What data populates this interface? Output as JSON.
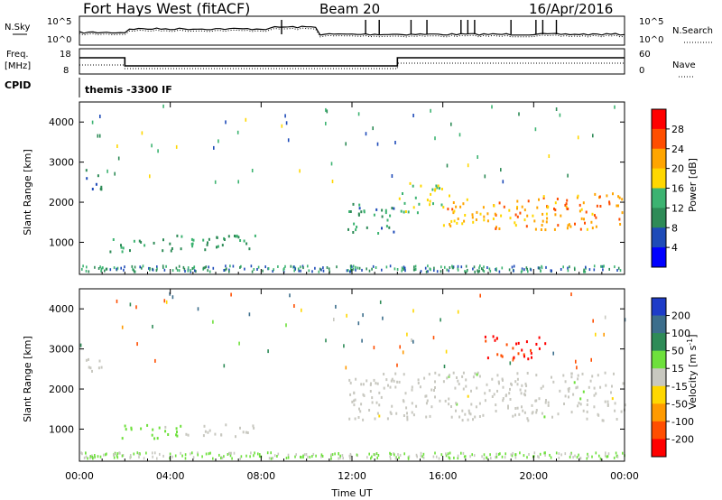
{
  "header": {
    "station": "Fort Hays West (fitACF)",
    "beam": "Beam 20",
    "date": "16/Apr/2016"
  },
  "aux_panels": {
    "nsky_label": "N.Sky",
    "nsky_ticks": [
      "10^5",
      "10^0"
    ],
    "nsearch_label": "N.Search",
    "freq_label_1": "Freq.",
    "freq_label_2": "[MHz]",
    "freq_ticks": [
      "18",
      "8"
    ],
    "nave_label": "Nave",
    "nave_ticks": [
      "60",
      "0"
    ],
    "cpid_label": "CPID",
    "cpid_value": "themis -3300 IF"
  },
  "chart_data": [
    {
      "type": "heatmap",
      "quantity": "Power",
      "xlabel": "Time UT",
      "ylabel": "Slant Range [km]",
      "xlim_hours": [
        0,
        24
      ],
      "ylim_km": [
        200,
        4500
      ],
      "y_ticks": [
        1000,
        2000,
        3000,
        4000
      ],
      "colorbar": {
        "label": "Power [dB]",
        "ticks": [
          "28",
          "24",
          "20",
          "16",
          "12",
          "8",
          "4"
        ],
        "colors": [
          "#ff0000",
          "#ff4e00",
          "#ffa500",
          "#ffd700",
          "#3cb371",
          "#2e8b57",
          "#1e4bb8",
          "#0000ff"
        ]
      },
      "echo_regions": [
        {
          "t0": 0.1,
          "t1": 1.0,
          "r0": 2300,
          "r1": 2800,
          "power_db": 10
        },
        {
          "t0": 1.3,
          "t1": 7.8,
          "r0": 750,
          "r1": 1150,
          "power_db": 14
        },
        {
          "t0": 11.8,
          "t1": 13.9,
          "r0": 1200,
          "r1": 2000,
          "power_db": 12
        },
        {
          "t0": 14.0,
          "t1": 16.0,
          "r0": 1700,
          "r1": 2500,
          "power_db": 18
        },
        {
          "t0": 16.0,
          "t1": 24.0,
          "r0": 1300,
          "r1": 2200,
          "power_db": 24
        }
      ]
    },
    {
      "type": "heatmap",
      "quantity": "Velocity",
      "xlabel": "Time UT",
      "ylabel": "Slant Range [km]",
      "xlim_hours": [
        0,
        24
      ],
      "ylim_km": [
        200,
        4500
      ],
      "x_ticks": [
        "00:00",
        "04:00",
        "08:00",
        "12:00",
        "16:00",
        "20:00",
        "00:00"
      ],
      "y_ticks": [
        1000,
        2000,
        3000,
        4000
      ],
      "colorbar": {
        "label_main": "Velocity [m s",
        "label_exp": "-1",
        "label_close": "]",
        "ticks": [
          "200",
          "100",
          "50",
          "15",
          "-15",
          "-50",
          "-100",
          "-200"
        ],
        "colors": [
          "#1e3cc8",
          "#3c6e8c",
          "#2e8b57",
          "#6ee03c",
          "#c8c8c0",
          "#ffd700",
          "#ff9a00",
          "#ff4e00",
          "#ff0000"
        ]
      },
      "echo_regions": [
        {
          "t0": 0.1,
          "t1": 1.0,
          "r0": 2300,
          "r1": 2800,
          "velocity": 0
        },
        {
          "t0": 1.3,
          "t1": 4.5,
          "r0": 750,
          "r1": 1100,
          "velocity": 30
        },
        {
          "t0": 4.5,
          "t1": 7.8,
          "r0": 800,
          "r1": 1100,
          "velocity": 0
        },
        {
          "t0": 11.8,
          "t1": 24.0,
          "r0": 1200,
          "r1": 2400,
          "velocity": 0
        },
        {
          "t0": 17.8,
          "t1": 20.5,
          "r0": 2700,
          "r1": 3300,
          "velocity": -200
        }
      ]
    }
  ]
}
